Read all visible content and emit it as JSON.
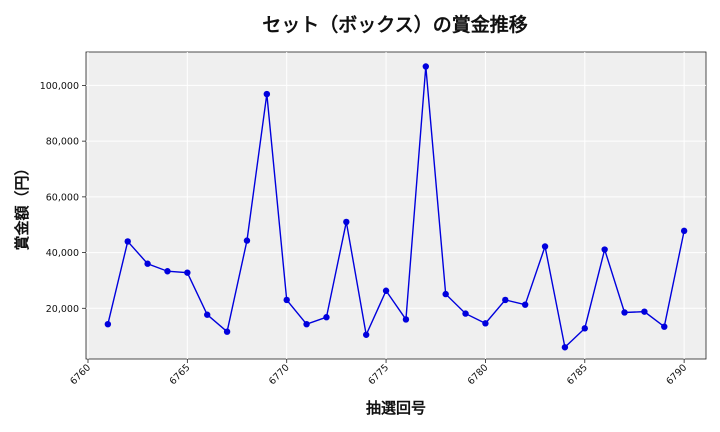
{
  "chart_data": {
    "type": "line",
    "title": "セット（ボックス）の賞金推移",
    "xlabel": "抽選回号",
    "ylabel": "賞金額（円）",
    "xlim": [
      6759.9,
      6791.1
    ],
    "ylim": [
      1800,
      112000
    ],
    "x_ticks": [
      6760,
      6765,
      6770,
      6775,
      6780,
      6785,
      6790
    ],
    "y_ticks": [
      20000,
      40000,
      60000,
      80000,
      100000
    ],
    "y_tick_labels": [
      "20,000",
      "40,000",
      "60,000",
      "80,000",
      "100,000"
    ],
    "grid": true,
    "series": [
      {
        "color": "#0000dd",
        "x": [
          6761,
          6762,
          6763,
          6764,
          6765,
          6766,
          6767,
          6768,
          6769,
          6770,
          6771,
          6772,
          6773,
          6774,
          6775,
          6776,
          6777,
          6778,
          6779,
          6780,
          6781,
          6782,
          6783,
          6784,
          6785,
          6786,
          6787,
          6788,
          6789,
          6790
        ],
        "values": [
          14300,
          44000,
          36000,
          33300,
          32800,
          17700,
          11600,
          44300,
          96900,
          23000,
          14300,
          16800,
          51000,
          10500,
          26300,
          16000,
          106800,
          25100,
          18100,
          14600,
          23000,
          21300,
          42200,
          6000,
          12800,
          41100,
          18500,
          18800,
          13400,
          47800
        ]
      }
    ]
  }
}
